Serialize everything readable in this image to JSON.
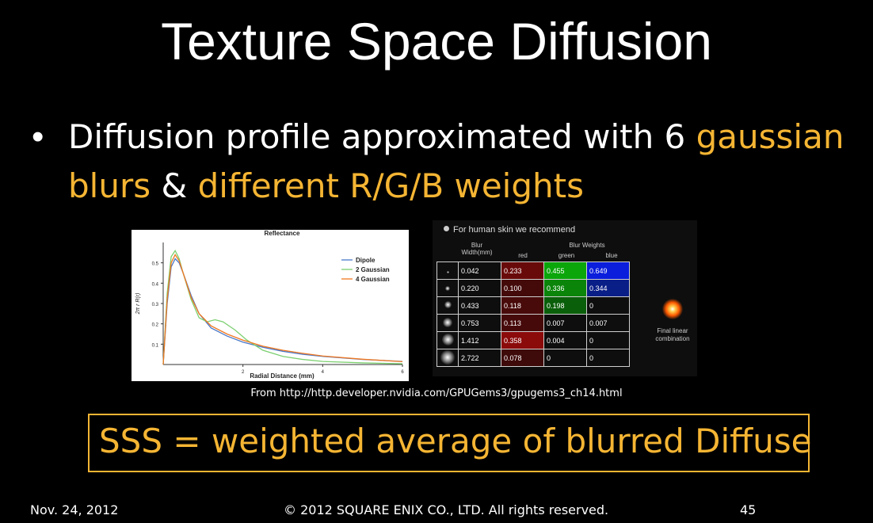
{
  "slide": {
    "title": "Texture Space Diffusion",
    "bullet": {
      "part1": "Diffusion profile approximated with 6 ",
      "hl1": "gaussian blurs",
      "part2": " & ",
      "hl2": "different R/G/B  weights"
    },
    "source": "From http://http.developer.nvidia.com/GPUGems3/gpugems3_ch14.html",
    "box_text": "SSS = weighted average of blurred Diffuse",
    "footer": {
      "date": "Nov. 24, 2012",
      "copyright": "© 2012 SQUARE ENIX CO., LTD. All rights reserved.",
      "page": "45"
    },
    "accent_color": "#f5b533"
  },
  "chart_data": {
    "type": "line",
    "title": "Reflectance",
    "xlabel": "Radial Distance (mm)",
    "ylabel": "2π r R(r)",
    "xlim": [
      0,
      6
    ],
    "ylim": [
      0,
      0.6
    ],
    "xticks": [
      "2",
      "4",
      "6"
    ],
    "yticks": [
      "0.1",
      "0.2",
      "0.3",
      "0.4",
      "0.5"
    ],
    "legend_position": "right",
    "series": [
      {
        "name": "Dipole",
        "color": "#4a78c8",
        "x": [
          0,
          0.1,
          0.2,
          0.3,
          0.4,
          0.5,
          0.7,
          0.9,
          1.2,
          1.6,
          2,
          2.5,
          3,
          3.5,
          4,
          5,
          6
        ],
        "y": [
          0,
          0.3,
          0.48,
          0.52,
          0.5,
          0.45,
          0.34,
          0.25,
          0.18,
          0.14,
          0.11,
          0.085,
          0.065,
          0.05,
          0.04,
          0.025,
          0.015
        ]
      },
      {
        "name": "2 Gaussian",
        "color": "#7cd070",
        "x": [
          0,
          0.1,
          0.2,
          0.3,
          0.4,
          0.5,
          0.7,
          0.9,
          1.1,
          1.3,
          1.5,
          1.8,
          2.1,
          2.5,
          3,
          3.5,
          4,
          5,
          6
        ],
        "y": [
          0,
          0.35,
          0.53,
          0.56,
          0.52,
          0.45,
          0.32,
          0.23,
          0.21,
          0.22,
          0.21,
          0.17,
          0.12,
          0.07,
          0.04,
          0.025,
          0.015,
          0.008,
          0.004
        ]
      },
      {
        "name": "4 Gaussian",
        "color": "#f07820",
        "x": [
          0,
          0.1,
          0.2,
          0.3,
          0.4,
          0.5,
          0.7,
          0.9,
          1.2,
          1.6,
          2,
          2.5,
          3,
          3.5,
          4,
          5,
          6
        ],
        "y": [
          0,
          0.32,
          0.5,
          0.54,
          0.51,
          0.45,
          0.33,
          0.25,
          0.19,
          0.15,
          0.12,
          0.09,
          0.07,
          0.055,
          0.042,
          0.026,
          0.014
        ]
      }
    ]
  },
  "table": {
    "note": "For human skin we recommend",
    "hdr_width": "Blur Width(mm)",
    "hdr_weights": "Blur Weights",
    "hdr_red": "red",
    "hdr_green": "green",
    "hdr_blue": "blue",
    "final_label": "Final linear combination",
    "rows": [
      {
        "width": "0.042",
        "red": "0.233",
        "green": "0.455",
        "blue": "0.649"
      },
      {
        "width": "0.220",
        "red": "0.100",
        "green": "0.336",
        "blue": "0.344"
      },
      {
        "width": "0.433",
        "red": "0.118",
        "green": "0.198",
        "blue": "0"
      },
      {
        "width": "0.753",
        "red": "0.113",
        "green": "0.007",
        "blue": "0.007"
      },
      {
        "width": "1.412",
        "red": "0.358",
        "green": "0.004",
        "blue": "0"
      },
      {
        "width": "2.722",
        "red": "0.078",
        "green": "0",
        "blue": "0"
      }
    ]
  }
}
